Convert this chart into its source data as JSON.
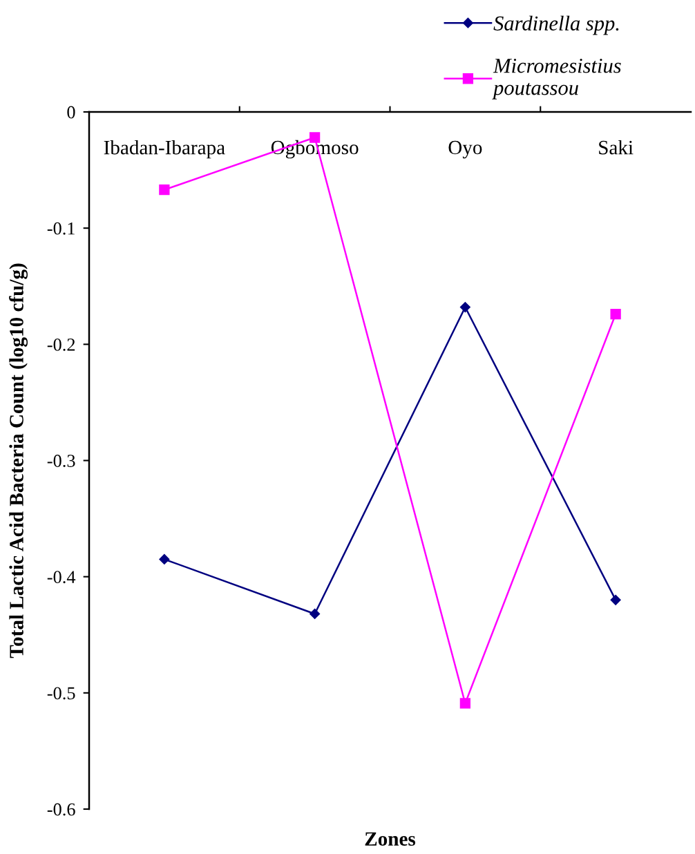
{
  "chart_data": {
    "type": "line",
    "xlabel": "Zones",
    "ylabel": "Total Lactic Acid Bacteria Count (log10 cfu/g)",
    "categories": [
      "Ibadan-Ibarapa",
      "Ogbomoso",
      "Oyo",
      "Saki"
    ],
    "series": [
      {
        "name": "Sardinella spp.",
        "color": "#000080",
        "marker": "diamond",
        "values": [
          -0.385,
          -0.432,
          -0.168,
          -0.42
        ]
      },
      {
        "name": "Micromesistius poutassou",
        "color": "#ff00ff",
        "marker": "square",
        "values": [
          -0.067,
          -0.022,
          -0.509,
          -0.174
        ]
      }
    ],
    "ylim": [
      -0.6,
      0
    ],
    "yticks": [
      -0.6,
      -0.5,
      -0.4,
      -0.3,
      -0.2,
      -0.1,
      0
    ],
    "grid": false,
    "legend": "top right",
    "line_style": "solid"
  }
}
